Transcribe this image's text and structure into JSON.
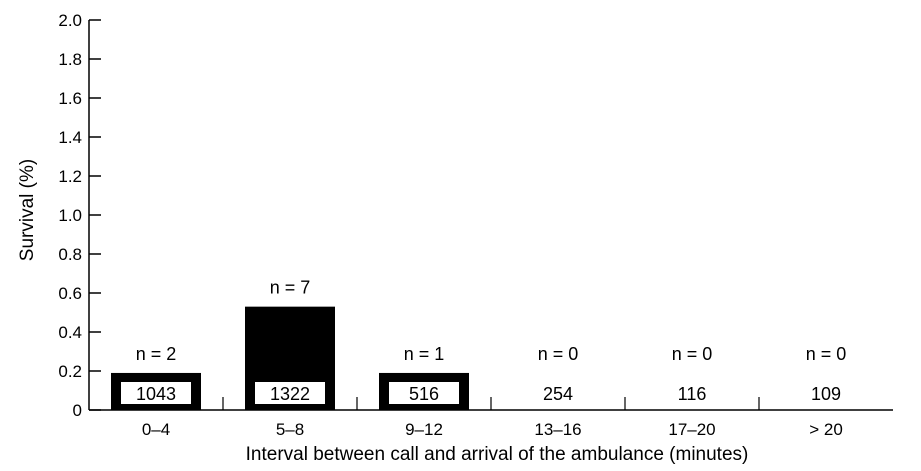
{
  "chart_data": {
    "type": "bar",
    "categories": [
      "0–4",
      "5–8",
      "9–12",
      "13–16",
      "17–20",
      "> 20"
    ],
    "values": [
      0.19,
      0.53,
      0.19,
      0,
      0,
      0
    ],
    "n_labels": [
      "n = 2",
      "n = 7",
      "n = 1",
      "n = 0",
      "n = 0",
      "n = 0"
    ],
    "count_labels": [
      "1043",
      "1322",
      "516",
      "254",
      "116",
      "109"
    ],
    "title": "",
    "xlabel": "Interval between call and arrival of the ambulance (minutes)",
    "ylabel": "Survival (%)",
    "ylim": [
      0,
      2.0
    ],
    "yticks": [
      "0",
      "0.2",
      "0.4",
      "0.6",
      "0.8",
      "1.0",
      "1.2",
      "1.4",
      "1.6",
      "1.8",
      "2.0"
    ],
    "grid": false,
    "bar_color": "#000000"
  }
}
